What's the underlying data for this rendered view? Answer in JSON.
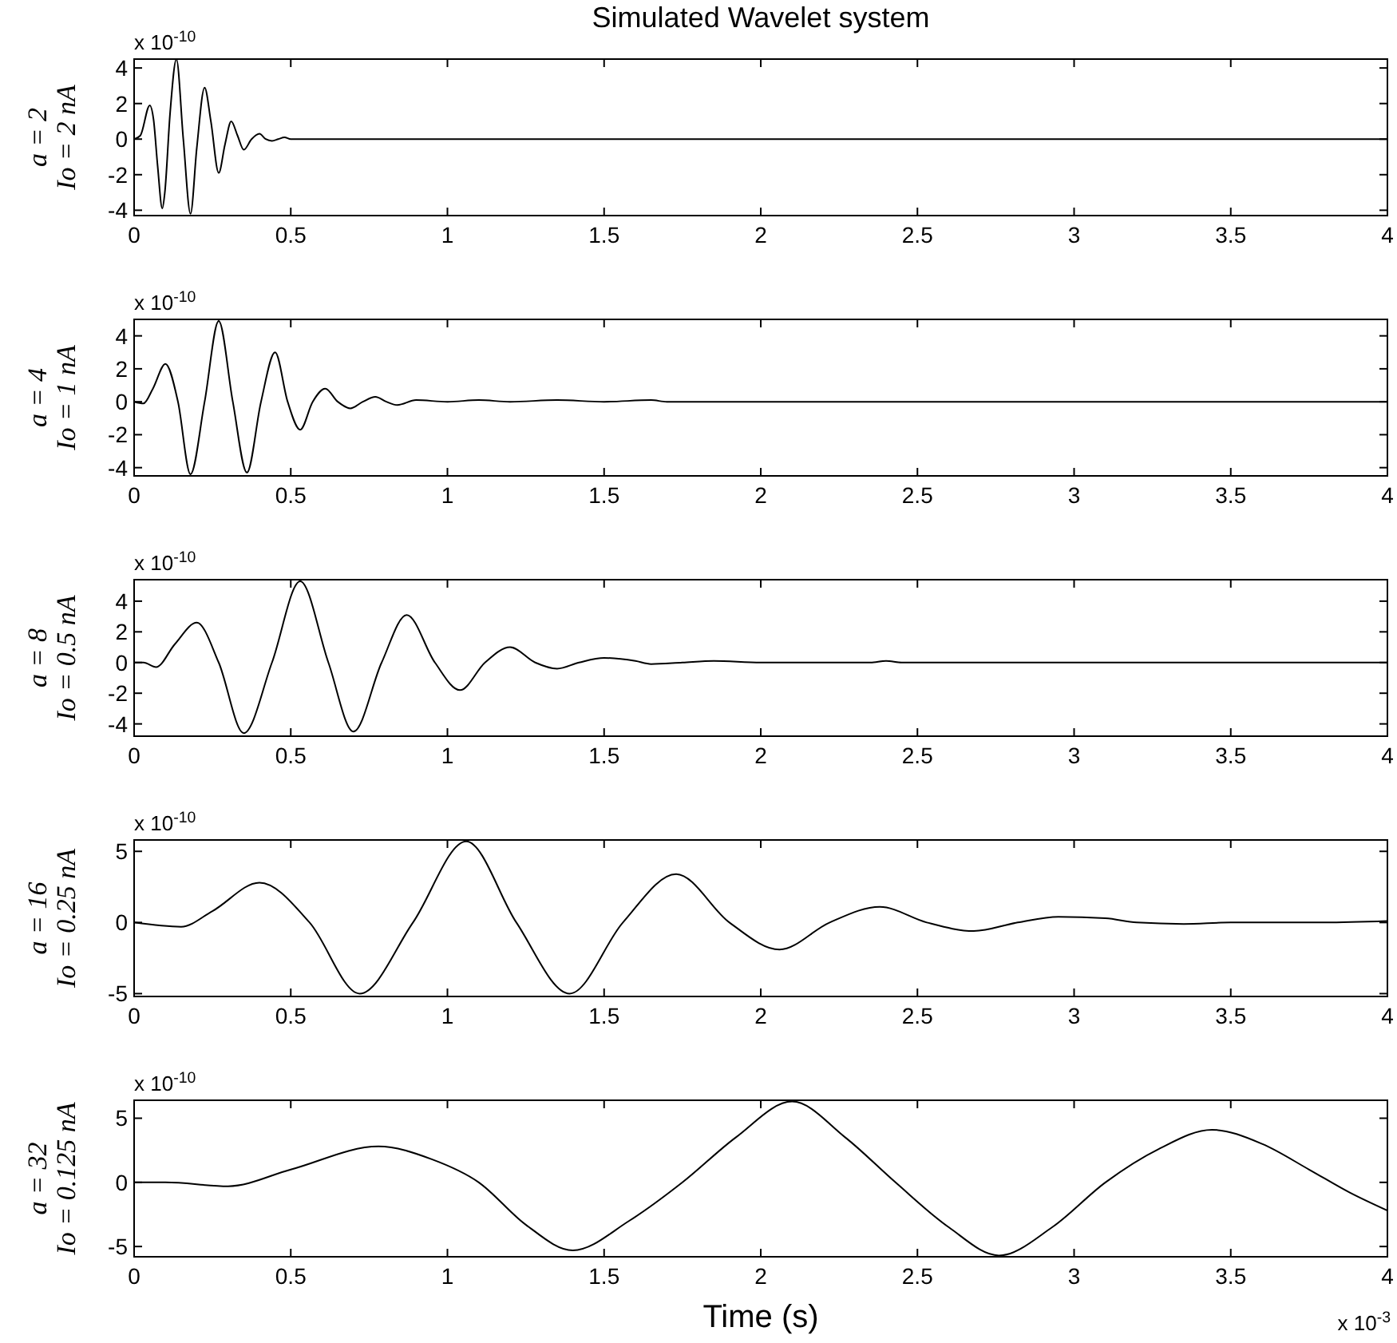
{
  "chart_data": [
    {
      "type": "line",
      "title": "Simulated Wavelet system",
      "ylabel": "a = 2\nIo = 2 nA",
      "annotations": [
        "x 10$^{-10}$"
      ],
      "xlim": [
        0,
        4
      ],
      "xticks": [
        0,
        0.5,
        1,
        1.5,
        2,
        2.5,
        3,
        3.5,
        4
      ],
      "ylim": [
        -4.3,
        4.5
      ],
      "yticks": [
        -4,
        -2,
        0,
        2,
        4
      ],
      "grid": false,
      "x": [
        0,
        0.02,
        0.05,
        0.062,
        0.075,
        0.09,
        0.098,
        0.115,
        0.135,
        0.157,
        0.18,
        0.2,
        0.225,
        0.245,
        0.27,
        0.29,
        0.31,
        0.33,
        0.35,
        0.375,
        0.4,
        0.42,
        0.44,
        0.46,
        0.48,
        0.5,
        4
      ],
      "series": [
        {
          "color": "#000000",
          "values": [
            0,
            0.2,
            1.9,
            1.1,
            -1.5,
            -3.9,
            -3.0,
            1.5,
            4.5,
            0,
            -4.2,
            -0.5,
            2.9,
            1.0,
            -1.9,
            -0.3,
            1.0,
            0.2,
            -0.6,
            0,
            0.3,
            0,
            -0.1,
            0,
            0.1,
            0,
            0
          ]
        }
      ]
    },
    {
      "type": "line",
      "ylabel": "a = 4\nIo = 1 nA",
      "annotations": [
        "x 10$^{-10}$"
      ],
      "xlim": [
        0,
        4
      ],
      "xticks": [
        0,
        0.5,
        1,
        1.5,
        2,
        2.5,
        3,
        3.5,
        4
      ],
      "ylim": [
        -4.5,
        5
      ],
      "yticks": [
        -4,
        -2,
        0,
        2,
        4
      ],
      "grid": false,
      "x": [
        0,
        0.03,
        0.06,
        0.1,
        0.14,
        0.18,
        0.225,
        0.27,
        0.315,
        0.36,
        0.405,
        0.45,
        0.49,
        0.53,
        0.57,
        0.61,
        0.65,
        0.69,
        0.73,
        0.77,
        0.805,
        0.84,
        0.9,
        1.0,
        1.1,
        1.2,
        1.35,
        1.5,
        1.65,
        1.7,
        4
      ],
      "series": [
        {
          "color": "#000000",
          "values": [
            0,
            -0.1,
            0.8,
            2.3,
            0,
            -4.4,
            0,
            4.9,
            0,
            -4.3,
            0,
            3.0,
            0,
            -1.7,
            0,
            0.8,
            0,
            -0.4,
            0,
            0.3,
            0,
            -0.2,
            0.1,
            0,
            0.1,
            0,
            0.1,
            0,
            0.1,
            0,
            0
          ]
        }
      ]
    },
    {
      "type": "line",
      "ylabel": "a = 8\nIo = 0.5 nA",
      "annotations": [
        "x 10$^{-10}$"
      ],
      "xlim": [
        0,
        4
      ],
      "xticks": [
        0,
        0.5,
        1,
        1.5,
        2,
        2.5,
        3,
        3.5,
        4
      ],
      "ylim": [
        -4.8,
        5.4
      ],
      "yticks": [
        -4,
        -2,
        0,
        2,
        4
      ],
      "grid": false,
      "x": [
        0,
        0.03,
        0.07,
        0.13,
        0.2,
        0.27,
        0.35,
        0.44,
        0.53,
        0.62,
        0.7,
        0.79,
        0.87,
        0.96,
        1.04,
        1.12,
        1.2,
        1.28,
        1.35,
        1.42,
        1.5,
        1.6,
        1.65,
        1.75,
        1.85,
        2.0,
        2.35,
        2.4,
        2.45,
        4
      ],
      "series": [
        {
          "color": "#000000",
          "values": [
            0,
            0,
            -0.3,
            1.2,
            2.6,
            0,
            -4.6,
            0,
            5.3,
            0,
            -4.5,
            0,
            3.1,
            0,
            -1.8,
            0,
            1.0,
            0,
            -0.4,
            0,
            0.3,
            0.1,
            -0.1,
            0,
            0.1,
            0,
            0,
            0.1,
            0,
            0
          ]
        }
      ]
    },
    {
      "type": "line",
      "ylabel": "a = 16\nIo = 0.25 nA",
      "annotations": [
        "x 10$^{-10}$"
      ],
      "xlim": [
        0,
        4
      ],
      "xticks": [
        0,
        0.5,
        1,
        1.5,
        2,
        2.5,
        3,
        3.5,
        4
      ],
      "ylim": [
        -5.2,
        5.8
      ],
      "yticks": [
        -5,
        0,
        5
      ],
      "grid": false,
      "x": [
        0,
        0.15,
        0.25,
        0.4,
        0.56,
        0.72,
        0.89,
        1.06,
        1.22,
        1.39,
        1.56,
        1.73,
        1.9,
        2.06,
        2.22,
        2.38,
        2.53,
        2.68,
        2.82,
        2.95,
        3.1,
        3.2,
        3.35,
        3.5,
        3.8,
        4
      ],
      "series": [
        {
          "color": "#000000",
          "values": [
            0,
            -0.3,
            0.8,
            2.8,
            0,
            -5.0,
            0,
            5.7,
            0,
            -5.0,
            0,
            3.4,
            0,
            -1.9,
            0,
            1.1,
            0,
            -0.6,
            0,
            0.4,
            0.3,
            0,
            -0.1,
            0,
            0,
            0.1
          ]
        }
      ]
    },
    {
      "type": "line",
      "ylabel": "a = 32\nIo = 0.125 nA",
      "xlabel": "Time (s)",
      "annotations": [
        "x 10$^{-10}$",
        "x 10$^{-3}$"
      ],
      "xlim": [
        0,
        4
      ],
      "xticks": [
        0,
        0.5,
        1,
        1.5,
        2,
        2.5,
        3,
        3.5,
        4
      ],
      "ylim": [
        -5.8,
        6.4
      ],
      "yticks": [
        -5,
        0,
        5
      ],
      "grid": false,
      "x": [
        0,
        0.1,
        0.3,
        0.5,
        0.78,
        0.95,
        1.1,
        1.25,
        1.4,
        1.58,
        1.75,
        1.92,
        2.1,
        2.27,
        2.43,
        2.6,
        2.76,
        2.93,
        3.1,
        3.27,
        3.44,
        3.6,
        3.75,
        3.88,
        4
      ],
      "series": [
        {
          "color": "#000000",
          "values": [
            0,
            0,
            -0.3,
            1.0,
            2.8,
            1.8,
            0,
            -3.3,
            -5.3,
            -3.0,
            0,
            3.5,
            6.3,
            3.5,
            0,
            -3.5,
            -5.7,
            -3.5,
            0,
            2.6,
            4.1,
            3.0,
            1.0,
            -0.8,
            -2.2
          ]
        }
      ]
    }
  ]
}
